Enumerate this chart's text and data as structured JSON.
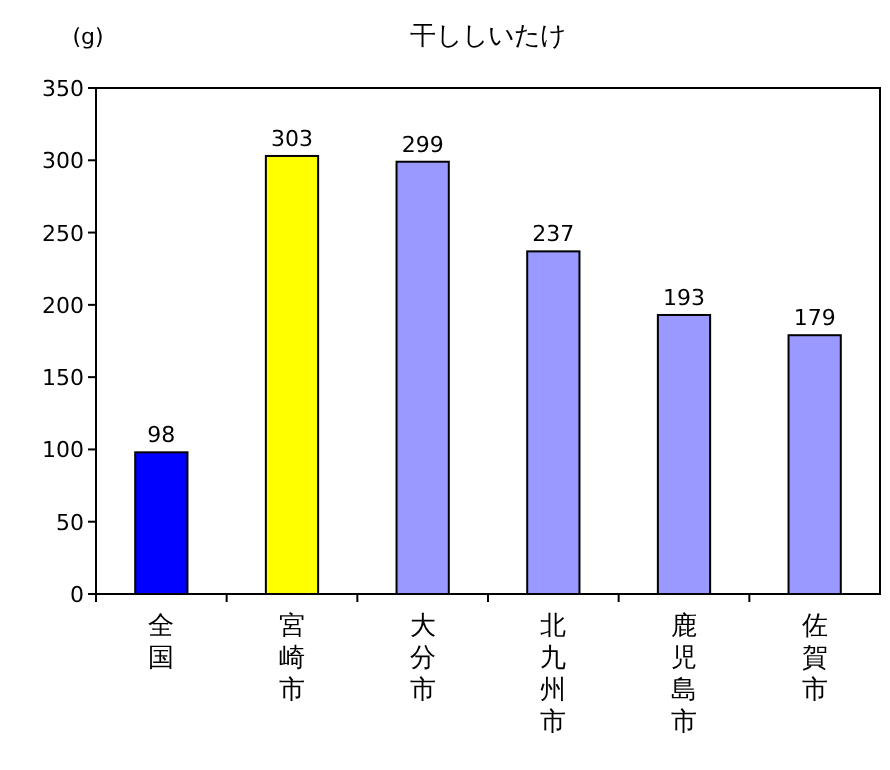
{
  "chart_data": {
    "type": "bar",
    "title": "干ししいたけ",
    "ylabel": "(g)",
    "categories": [
      "全国",
      "宮崎市",
      "大分市",
      "北九州市",
      "鹿児島市",
      "佐賀市"
    ],
    "values": [
      98,
      303,
      299,
      237,
      193,
      179
    ],
    "colors": [
      "#0000ff",
      "#ffff00",
      "#9999ff",
      "#9999ff",
      "#9999ff",
      "#9999ff"
    ],
    "ylim": [
      0,
      350
    ],
    "yticks": [
      0,
      50,
      100,
      150,
      200,
      250,
      300,
      350
    ],
    "data_labels": true,
    "grid": false
  }
}
